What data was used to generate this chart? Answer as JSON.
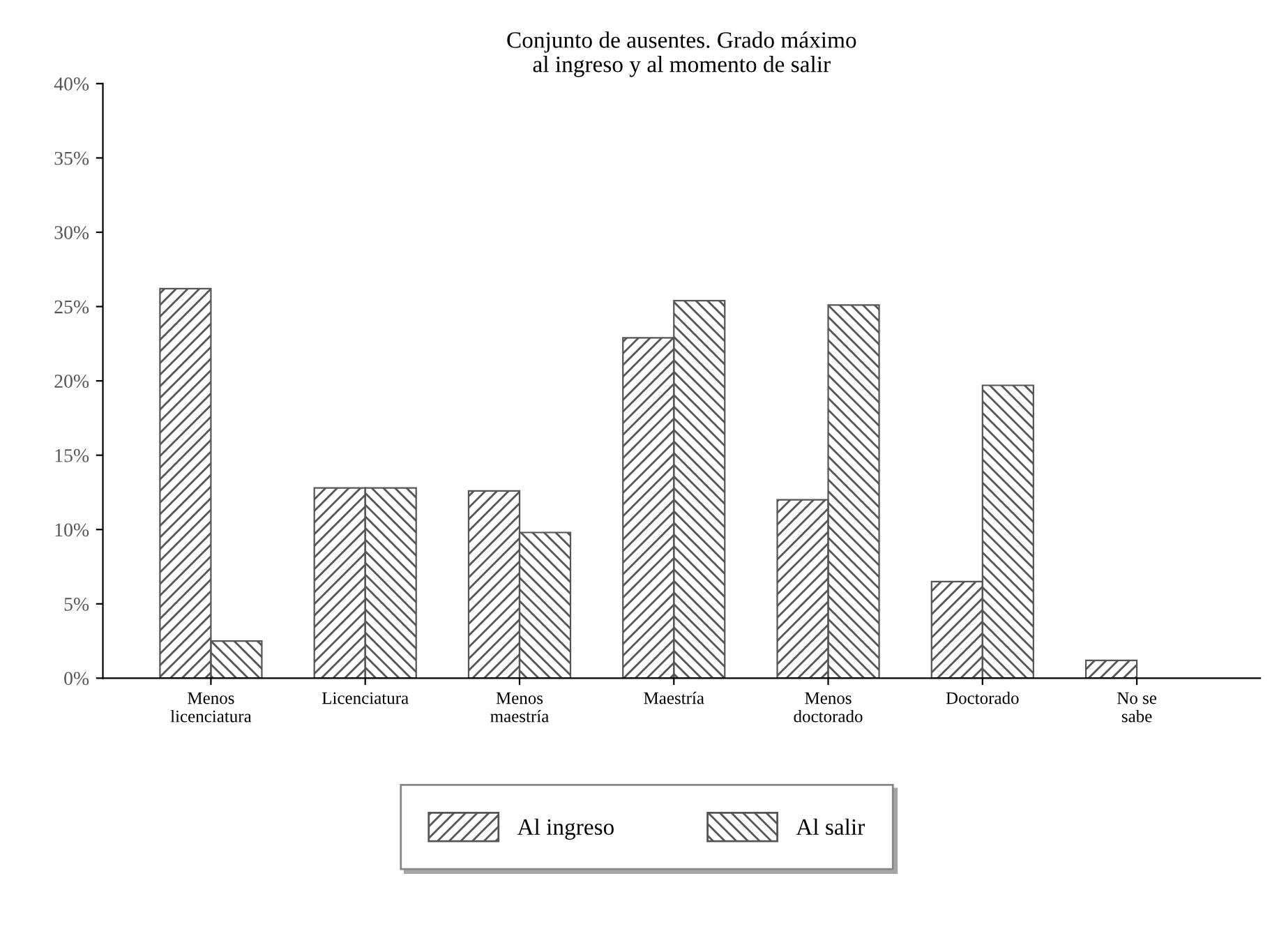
{
  "chart_data": {
    "type": "bar",
    "title": "Conjunto de ausentes. Grado máximo\nal ingreso y al momento de salir",
    "categories": [
      "Menos\nlicenciatura",
      "Licenciatura",
      "Menos\nmaestría",
      "Maestría",
      "Menos\ndoctorado",
      "Doctorado",
      "No se\nsabe"
    ],
    "series": [
      {
        "name": "Al ingreso",
        "color": "#555555",
        "values": [
          26.2,
          12.8,
          12.6,
          22.9,
          12.0,
          6.5,
          1.2
        ]
      },
      {
        "name": "Al salir",
        "color": "#555555",
        "values": [
          2.5,
          12.8,
          9.8,
          25.4,
          25.1,
          19.7,
          null
        ]
      }
    ],
    "ylim": [
      0,
      40
    ],
    "yticks": [
      {
        "value": 0,
        "label": "0%"
      },
      {
        "value": 5,
        "label": "5%"
      },
      {
        "value": 10,
        "label": "10%"
      },
      {
        "value": 15,
        "label": "15%"
      },
      {
        "value": 20,
        "label": "20%"
      },
      {
        "value": 25,
        "label": "25%"
      },
      {
        "value": 30,
        "label": "30%"
      },
      {
        "value": 35,
        "label": "35%"
      },
      {
        "value": 40,
        "label": "40%"
      }
    ],
    "grid": false,
    "legend": "bottom"
  }
}
